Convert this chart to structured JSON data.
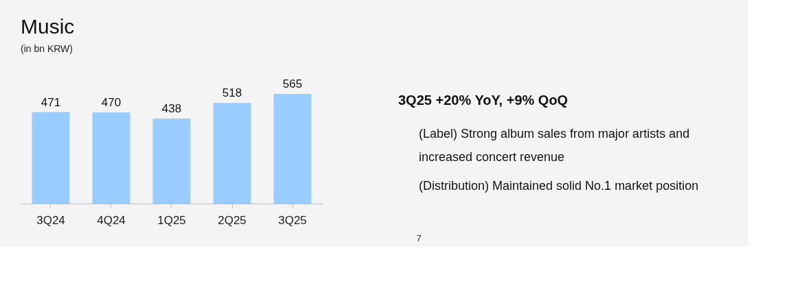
{
  "chart_data": {
    "type": "bar",
    "title": "Music",
    "subtitle": "(in bn KRW)",
    "categories": [
      "3Q24",
      "4Q24",
      "1Q25",
      "2Q25",
      "3Q25"
    ],
    "values": [
      471,
      470,
      438,
      518,
      565
    ],
    "color": "#99ccff",
    "data_labels": true,
    "grid": false,
    "annotations": [
      "3Q25 +20% YoY, +9% QoQ",
      "(Label) Strong album sales from major artists and increased concert revenue",
      "(Distribution) Maintained solid No.1 market position",
      "7"
    ]
  }
}
